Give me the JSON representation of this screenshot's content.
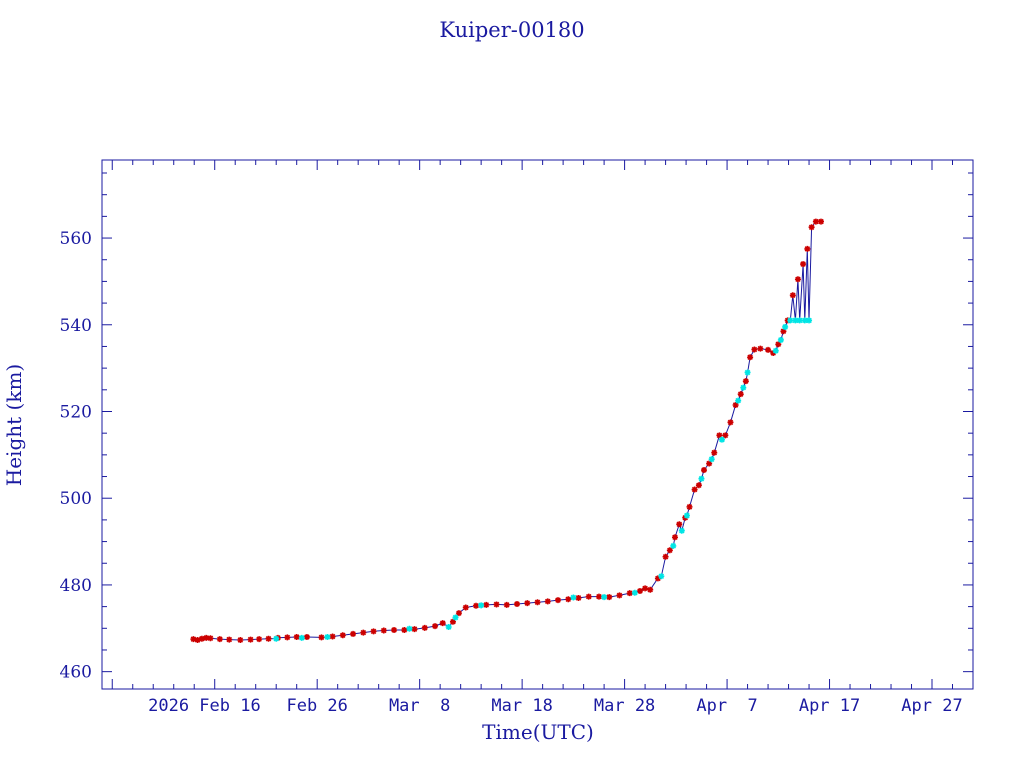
{
  "chart_data": {
    "type": "line",
    "title": "Kuiper-00180",
    "xlabel": "Time(UTC)",
    "ylabel": "Height (km)",
    "x_ticks": [
      {
        "date": "2026-02-16",
        "label": "2026 Feb 16"
      },
      {
        "date": "2026-02-26",
        "label": "Feb 26"
      },
      {
        "date": "2026-03-08",
        "label": "Mar  8"
      },
      {
        "date": "2026-03-18",
        "label": "Mar 18"
      },
      {
        "date": "2026-03-28",
        "label": "Mar 28"
      },
      {
        "date": "2026-04-07",
        "label": "Apr  7"
      },
      {
        "date": "2026-04-17",
        "label": "Apr 17"
      },
      {
        "date": "2026-04-27",
        "label": "Apr 27"
      }
    ],
    "y_ticks": [
      460,
      480,
      500,
      520,
      540,
      560
    ],
    "xlim": [
      "2026-02-05T00:00",
      "2026-05-01T00:00"
    ],
    "ylim": [
      456,
      578
    ],
    "colors": {
      "axis": "#1a1aa0",
      "line": "#1a1aa0",
      "red_marker": "#cc0000",
      "cyan_marker": "#00e5e5"
    },
    "series": [
      {
        "marker_color": "red",
        "points": [
          [
            "2026-02-13T22:00",
            467.5
          ],
          [
            "2026-02-14T08:00",
            467.3
          ],
          [
            "2026-02-14T18:00",
            467.6
          ],
          [
            "2026-02-15T04:00",
            467.8
          ],
          [
            "2026-02-15T14:00",
            467.7
          ],
          [
            "2026-02-16T12:00",
            467.5
          ],
          [
            "2026-02-17T10:00",
            467.4
          ],
          [
            "2026-02-18T12:00",
            467.3
          ],
          [
            "2026-02-19T12:00",
            467.4
          ],
          [
            "2026-02-20T08:00",
            467.5
          ],
          [
            "2026-02-21T06:00",
            467.6
          ],
          [
            "2026-02-22T04:00",
            467.8
          ],
          [
            "2026-02-23T02:00",
            467.9
          ],
          [
            "2026-02-24T00:00",
            468.0
          ],
          [
            "2026-02-25T00:00",
            468.0
          ],
          [
            "2026-02-26T10:00",
            467.9
          ],
          [
            "2026-02-27T12:00",
            468.1
          ],
          [
            "2026-02-28T12:00",
            468.4
          ],
          [
            "2026-03-01T12:00",
            468.7
          ],
          [
            "2026-03-02T12:00",
            469.0
          ],
          [
            "2026-03-03T12:00",
            469.3
          ],
          [
            "2026-03-04T12:00",
            469.5
          ],
          [
            "2026-03-05T12:00",
            469.6
          ],
          [
            "2026-03-06T12:00",
            469.6
          ],
          [
            "2026-03-07T12:00",
            469.8
          ],
          [
            "2026-03-08T12:00",
            470.1
          ],
          [
            "2026-03-09T12:00",
            470.5
          ],
          [
            "2026-03-10T06:00",
            471.2
          ],
          [
            "2026-03-11T06:00",
            471.5
          ],
          [
            "2026-03-11T20:00",
            473.5
          ],
          [
            "2026-03-12T12:00",
            474.8
          ],
          [
            "2026-03-13T12:00",
            475.2
          ],
          [
            "2026-03-14T12:00",
            475.4
          ],
          [
            "2026-03-15T12:00",
            475.5
          ],
          [
            "2026-03-16T12:00",
            475.4
          ],
          [
            "2026-03-17T12:00",
            475.6
          ],
          [
            "2026-03-18T12:00",
            475.8
          ],
          [
            "2026-03-19T12:00",
            476.0
          ],
          [
            "2026-03-20T12:00",
            476.2
          ],
          [
            "2026-03-21T12:00",
            476.5
          ],
          [
            "2026-03-22T12:00",
            476.7
          ],
          [
            "2026-03-23T12:00",
            477.0
          ],
          [
            "2026-03-24T12:00",
            477.3
          ],
          [
            "2026-03-25T12:00",
            477.3
          ],
          [
            "2026-03-26T12:00",
            477.2
          ],
          [
            "2026-03-27T12:00",
            477.6
          ],
          [
            "2026-03-28T12:00",
            478.1
          ],
          [
            "2026-03-29T12:00",
            478.6
          ],
          [
            "2026-03-30T00:00",
            479.2
          ],
          [
            "2026-03-30T12:00",
            478.9
          ],
          [
            "2026-03-31T06:00",
            481.5
          ],
          [
            "2026-04-01T00:00",
            486.5
          ],
          [
            "2026-04-01T10:00",
            488.0
          ],
          [
            "2026-04-01T22:00",
            491.0
          ],
          [
            "2026-04-02T08:00",
            494.0
          ],
          [
            "2026-04-02T22:00",
            495.5
          ],
          [
            "2026-04-03T08:00",
            498.0
          ],
          [
            "2026-04-03T20:00",
            502.0
          ],
          [
            "2026-04-04T06:00",
            503.0
          ],
          [
            "2026-04-04T18:00",
            506.5
          ],
          [
            "2026-04-05T06:00",
            508.0
          ],
          [
            "2026-04-05T18:00",
            510.5
          ],
          [
            "2026-04-06T06:00",
            514.5
          ],
          [
            "2026-04-06T20:00",
            514.5
          ],
          [
            "2026-04-07T08:00",
            517.5
          ],
          [
            "2026-04-07T20:00",
            521.5
          ],
          [
            "2026-04-08T08:00",
            524.0
          ],
          [
            "2026-04-08T20:00",
            527.0
          ],
          [
            "2026-04-09T06:00",
            532.5
          ],
          [
            "2026-04-09T16:00",
            534.3
          ],
          [
            "2026-04-10T06:00",
            534.5
          ],
          [
            "2026-04-11T00:00",
            534.2
          ],
          [
            "2026-04-11T12:00",
            533.5
          ],
          [
            "2026-04-12T00:00",
            535.5
          ],
          [
            "2026-04-12T12:00",
            538.5
          ],
          [
            "2026-04-12T22:00",
            541.0
          ],
          [
            "2026-04-13T10:00",
            546.8
          ],
          [
            "2026-04-13T22:00",
            550.5
          ],
          [
            "2026-04-14T10:00",
            554.0
          ],
          [
            "2026-04-14T20:00",
            557.5
          ],
          [
            "2026-04-15T06:00",
            562.5
          ],
          [
            "2026-04-15T16:00",
            563.8
          ],
          [
            "2026-04-16T04:00",
            563.8
          ]
        ]
      },
      {
        "marker_color": "cyan",
        "points": [
          [
            "2026-02-22T00:00",
            467.6
          ],
          [
            "2026-02-24T12:00",
            467.8
          ],
          [
            "2026-02-27T00:00",
            468.0
          ],
          [
            "2026-03-07T00:00",
            469.9
          ],
          [
            "2026-03-10T20:00",
            470.3
          ],
          [
            "2026-03-11T12:00",
            472.5
          ],
          [
            "2026-03-14T00:00",
            475.3
          ],
          [
            "2026-03-23T00:00",
            477.1
          ],
          [
            "2026-03-26T00:00",
            477.2
          ],
          [
            "2026-03-29T00:00",
            478.2
          ],
          [
            "2026-03-31T14:00",
            482.0
          ],
          [
            "2026-04-01T18:00",
            489.0
          ],
          [
            "2026-04-02T14:00",
            492.5
          ],
          [
            "2026-04-03T02:00",
            496.0
          ],
          [
            "2026-04-04T12:00",
            504.5
          ],
          [
            "2026-04-05T12:00",
            509.0
          ],
          [
            "2026-04-06T12:00",
            513.5
          ],
          [
            "2026-04-08T02:00",
            522.5
          ],
          [
            "2026-04-08T14:00",
            525.5
          ],
          [
            "2026-04-09T00:00",
            529.0
          ],
          [
            "2026-04-11T18:00",
            534.0
          ],
          [
            "2026-04-12T06:00",
            536.5
          ],
          [
            "2026-04-12T16:00",
            539.5
          ],
          [
            "2026-04-13T04:00",
            541.0
          ],
          [
            "2026-04-13T16:00",
            541.0
          ],
          [
            "2026-04-14T02:00",
            541.0
          ],
          [
            "2026-04-14T14:00",
            541.0
          ],
          [
            "2026-04-15T00:00",
            541.0
          ]
        ]
      }
    ]
  }
}
